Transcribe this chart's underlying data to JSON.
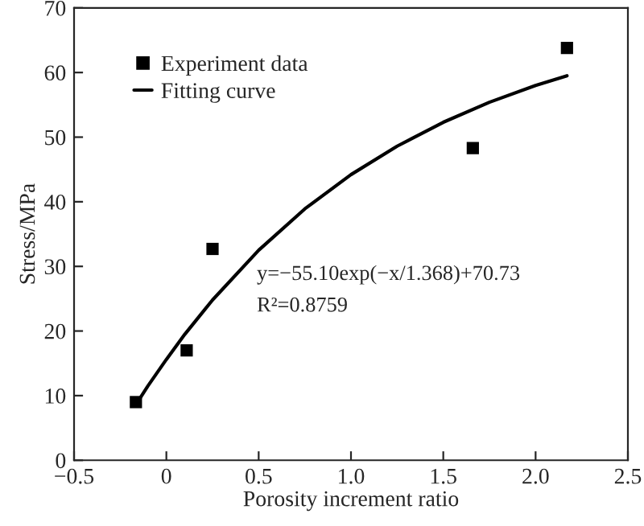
{
  "chart_data": {
    "type": "scatter",
    "xlabel": "Porosity increment ratio",
    "ylabel": "Stress/MPa",
    "series": [
      {
        "name": "Experiment data",
        "color": "#000000",
        "marker": "square",
        "x": [
          -0.165,
          0.11,
          0.25,
          1.66,
          2.17
        ],
        "values": [
          9,
          17,
          32.7,
          48.3,
          63.8
        ]
      },
      {
        "name": "Fitting curve",
        "type": "line",
        "color": "#000000",
        "marker": "none",
        "line_style": "solid",
        "x": [
          -0.17,
          -0.1,
          0,
          0.1,
          0.25,
          0.5,
          0.75,
          1.0,
          1.25,
          1.5,
          1.75,
          2.0,
          2.17
        ],
        "values": [
          8.4,
          11.5,
          15.6,
          19.5,
          24.8,
          32.5,
          38.9,
          44.2,
          48.6,
          52.3,
          55.4,
          58.0,
          59.5
        ]
      }
    ],
    "xlim": [
      -0.5,
      2.5
    ],
    "xticks": [
      {
        "value": -0.5,
        "label": "−0.5"
      },
      0,
      0.5,
      {
        "value": 1.0,
        "label": "1.0"
      },
      1.5,
      {
        "value": 2.0,
        "label": "2.0"
      },
      2.5
    ],
    "ylim": [
      0,
      70
    ],
    "yticks": [
      0,
      10,
      20,
      30,
      40,
      50,
      60,
      70
    ],
    "annotations": [
      "y=−55.10exp(−x/1.368)+70.73",
      "R²=0.8759"
    ],
    "legend": "top left",
    "grid": false
  }
}
